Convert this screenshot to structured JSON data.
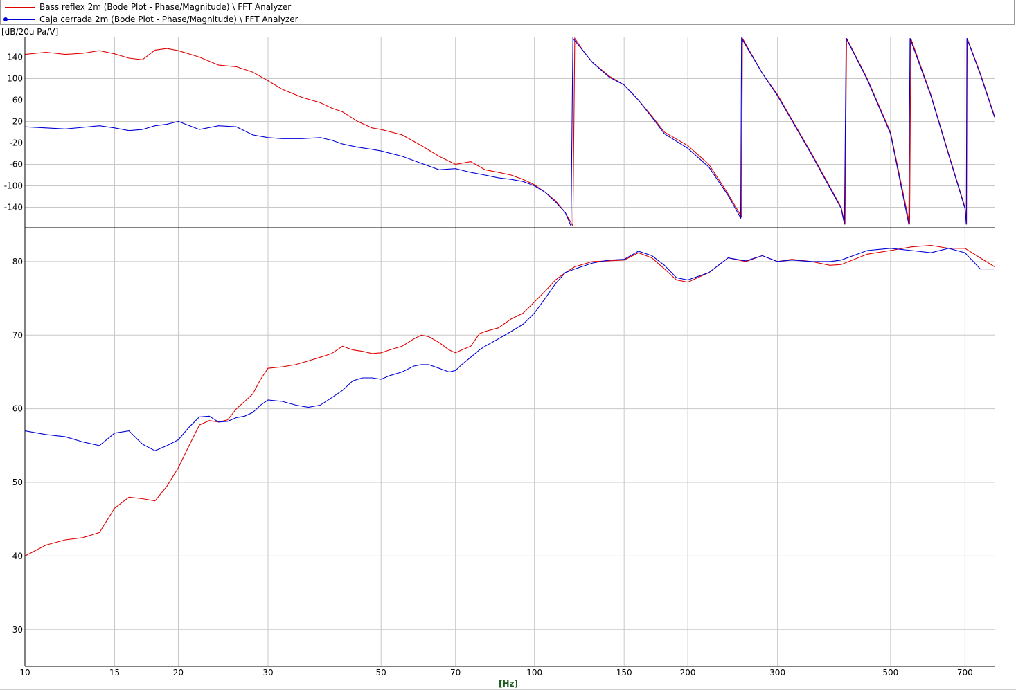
{
  "legend": [
    {
      "label": "Bass reflex 2m (Bode Plot - Phase/Magnitude) \\ FFT Analyzer",
      "color": "#e00000",
      "marker": false
    },
    {
      "label": "Caja cerrada 2m (Bode Plot - Phase/Magnitude) \\ FFT Analyzer",
      "color": "#0000d8",
      "marker": true
    }
  ],
  "y_unit_label": "[dB/20u Pa/V]",
  "x_unit_label": "[Hz]",
  "colors": {
    "series1": "#e00000",
    "series2": "#0000d8",
    "grid": "#c8c8c8",
    "axis": "#000000"
  },
  "chart_data": [
    {
      "type": "line",
      "xlabel": "[Hz]",
      "x_scale": "log",
      "xlim": [
        10,
        800
      ],
      "ylim": [
        -178,
        178
      ],
      "grid": true,
      "x_ticks": [
        10,
        15,
        20,
        30,
        50,
        70,
        100,
        150,
        200,
        300,
        500,
        700
      ],
      "y_ticks": [
        140,
        100,
        60,
        20,
        -20,
        -60,
        -100,
        -140
      ],
      "series": [
        {
          "name": "Bass reflex 2m (Bode Plot - Phase/Magnitude) \\ FFT Analyzer",
          "x": [
            10,
            11,
            12,
            13,
            14,
            15,
            16,
            17,
            18,
            19,
            20,
            22,
            24,
            26,
            28,
            30,
            32,
            35,
            38,
            40,
            42,
            45,
            48,
            50,
            55,
            60,
            65,
            70,
            75,
            80,
            85,
            90,
            95,
            100,
            105,
            110,
            115,
            119,
            120,
            125,
            130,
            140,
            150,
            160,
            170,
            180,
            200,
            220,
            240,
            255,
            256,
            280,
            300,
            350,
            400,
            407,
            410,
            450,
            500,
            545,
            548,
            600,
            650,
            700,
            705,
            707,
            750,
            800
          ],
          "y": [
            145,
            149,
            145,
            147,
            152,
            146,
            138,
            135,
            153,
            156,
            152,
            140,
            125,
            122,
            112,
            96,
            80,
            65,
            55,
            45,
            38,
            20,
            8,
            5,
            -5,
            -25,
            -45,
            -60,
            -55,
            -70,
            -75,
            -80,
            -88,
            -98,
            -112,
            -128,
            -150,
            -175,
            175,
            150,
            130,
            105,
            88,
            60,
            30,
            0,
            -25,
            -60,
            -115,
            -158,
            175,
            110,
            70,
            -40,
            -140,
            -172,
            175,
            100,
            0,
            -172,
            175,
            70,
            -40,
            -140,
            -172,
            175,
            110,
            30
          ]
        },
        {
          "name": "Caja cerrada 2m (Bode Plot - Phase/Magnitude) \\ FFT Analyzer",
          "x": [
            10,
            11,
            12,
            13,
            14,
            15,
            16,
            17,
            18,
            19,
            20,
            22,
            24,
            26,
            28,
            30,
            32,
            35,
            38,
            40,
            42,
            45,
            48,
            50,
            55,
            60,
            65,
            70,
            75,
            80,
            85,
            90,
            95,
            100,
            105,
            110,
            115,
            118,
            119,
            125,
            130,
            140,
            150,
            160,
            170,
            180,
            200,
            220,
            240,
            254,
            255,
            280,
            300,
            350,
            400,
            406,
            409,
            450,
            500,
            543,
            546,
            600,
            650,
            700,
            704,
            706,
            750,
            800
          ],
          "y": [
            10,
            8,
            6,
            9,
            12,
            8,
            3,
            5,
            12,
            15,
            20,
            5,
            12,
            10,
            -5,
            -10,
            -12,
            -12,
            -10,
            -15,
            -22,
            -28,
            -32,
            -35,
            -45,
            -58,
            -70,
            -68,
            -75,
            -80,
            -85,
            -88,
            -92,
            -100,
            -112,
            -130,
            -150,
            -175,
            175,
            150,
            130,
            103,
            88,
            60,
            28,
            -3,
            -30,
            -65,
            -118,
            -160,
            175,
            110,
            68,
            -42,
            -142,
            -172,
            175,
            98,
            -3,
            -172,
            175,
            68,
            -42,
            -142,
            -172,
            175,
            108,
            28
          ]
        }
      ]
    },
    {
      "type": "line",
      "xlabel": "[Hz]",
      "ylabel": "[dB/20u Pa/V]",
      "x_scale": "log",
      "xlim": [
        10,
        800
      ],
      "ylim": [
        25,
        84.6
      ],
      "grid": true,
      "x_ticks": [
        10,
        15,
        20,
        30,
        50,
        70,
        100,
        150,
        200,
        300,
        500,
        700
      ],
      "y_ticks": [
        80,
        70,
        60,
        50,
        40,
        30
      ],
      "series": [
        {
          "name": "Bass reflex 2m (Bode Plot - Phase/Magnitude) \\ FFT Analyzer",
          "x": [
            10,
            11,
            12,
            13,
            14,
            15,
            16,
            17,
            18,
            19,
            20,
            21,
            22,
            23,
            24,
            25,
            26,
            27,
            28,
            29,
            30,
            32,
            34,
            36,
            38,
            40,
            42,
            44,
            46,
            48,
            50,
            52,
            55,
            58,
            60,
            62,
            65,
            68,
            70,
            72,
            75,
            78,
            80,
            85,
            90,
            95,
            100,
            105,
            110,
            115,
            120,
            130,
            140,
            150,
            160,
            170,
            180,
            190,
            200,
            220,
            240,
            260,
            280,
            300,
            320,
            350,
            380,
            400,
            450,
            500,
            550,
            600,
            650,
            700,
            750,
            800
          ],
          "y": [
            40,
            41.5,
            42.2,
            42.5,
            43.2,
            46.5,
            48,
            47.8,
            47.5,
            49.5,
            52,
            55,
            57.8,
            58.4,
            58.2,
            58.5,
            60,
            61,
            62,
            64,
            65.5,
            65.7,
            66,
            66.5,
            67,
            67.5,
            68.5,
            68,
            67.8,
            67.5,
            67.6,
            68,
            68.5,
            69.5,
            70,
            69.8,
            69,
            68,
            67.6,
            68,
            68.5,
            70.2,
            70.5,
            71,
            72.2,
            73,
            74.5,
            76,
            77.5,
            78.5,
            79.3,
            80,
            80.1,
            80.2,
            81.2,
            80.5,
            79,
            77.5,
            77.2,
            78.5,
            80.5,
            80,
            80.8,
            80,
            80.3,
            80,
            79.5,
            79.6,
            81,
            81.5,
            82,
            82.2,
            81.8,
            81.8,
            80.5,
            79.3
          ]
        },
        {
          "name": "Caja cerrada 2m (Bode Plot - Phase/Magnitude) \\ FFT Analyzer",
          "x": [
            10,
            11,
            12,
            13,
            14,
            15,
            16,
            17,
            18,
            19,
            20,
            21,
            22,
            23,
            24,
            25,
            26,
            27,
            28,
            29,
            30,
            32,
            34,
            36,
            38,
            40,
            42,
            44,
            46,
            48,
            50,
            52,
            55,
            58,
            60,
            62,
            65,
            68,
            70,
            72,
            75,
            78,
            80,
            85,
            90,
            95,
            100,
            105,
            110,
            115,
            120,
            130,
            140,
            150,
            160,
            170,
            180,
            190,
            200,
            220,
            240,
            260,
            280,
            300,
            320,
            350,
            380,
            400,
            450,
            500,
            550,
            600,
            650,
            700,
            750,
            800
          ],
          "y": [
            57,
            56.5,
            56.2,
            55.5,
            55,
            56.7,
            57,
            55.2,
            54.3,
            55,
            55.8,
            57.5,
            58.9,
            59,
            58.2,
            58.3,
            58.8,
            59,
            59.5,
            60.5,
            61.2,
            61,
            60.5,
            60.2,
            60.5,
            61.5,
            62.5,
            63.8,
            64.2,
            64.2,
            64,
            64.5,
            65,
            65.8,
            66,
            66,
            65.5,
            65,
            65.2,
            66,
            67,
            68,
            68.5,
            69.5,
            70.5,
            71.5,
            73,
            75,
            77,
            78.5,
            79,
            79.8,
            80.2,
            80.3,
            81.4,
            80.8,
            79.5,
            77.8,
            77.5,
            78.5,
            80.5,
            80.1,
            80.8,
            80,
            80.2,
            80,
            80,
            80.2,
            81.5,
            81.8,
            81.5,
            81.2,
            81.8,
            81.2,
            79,
            79
          ]
        }
      ]
    }
  ]
}
